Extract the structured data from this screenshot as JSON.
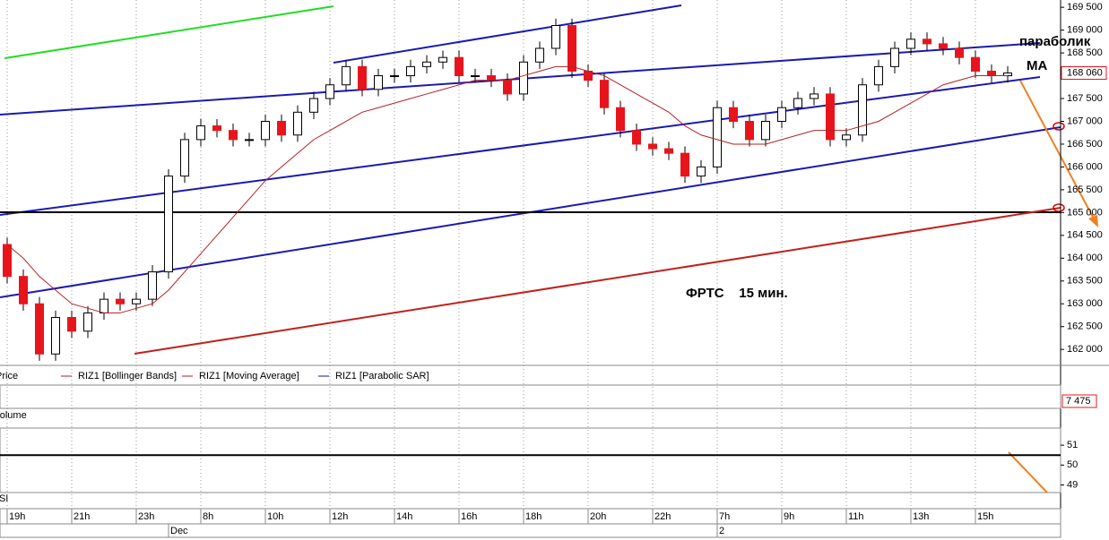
{
  "chart_data": {
    "type": "candlestick",
    "categories": [
      "19h",
      null,
      null,
      null,
      "21h",
      null,
      null,
      null,
      "23h",
      null,
      null,
      null,
      "8h",
      null,
      null,
      null,
      "10h",
      null,
      null,
      null,
      "12h",
      null,
      null,
      null,
      "14h",
      null,
      null,
      null,
      "16h",
      null,
      null,
      null,
      "18h",
      null,
      null,
      null,
      "20h",
      null,
      null,
      null,
      "22h",
      null,
      null,
      null,
      "7h",
      null,
      null,
      null,
      "9h",
      null,
      null,
      null,
      "11h",
      null,
      null,
      null,
      "13h",
      null,
      null,
      null,
      "15h",
      null,
      null
    ],
    "date_labels": [
      null,
      null,
      null,
      null,
      null,
      null,
      null,
      null,
      null,
      null,
      "Dec",
      null,
      null,
      null,
      null,
      null,
      null,
      null,
      null,
      null,
      null,
      null,
      null,
      null,
      null,
      null,
      null,
      null,
      null,
      null,
      null,
      null,
      null,
      null,
      null,
      null,
      null,
      null,
      null,
      null,
      null,
      null,
      null,
      null,
      "2",
      null,
      null,
      null,
      null,
      null,
      null,
      null,
      null,
      null,
      null,
      null,
      null,
      null,
      null,
      null,
      null,
      null,
      null
    ],
    "open": [
      164300,
      163600,
      163000,
      161900,
      162700,
      162400,
      162800,
      163100,
      163000,
      163100,
      163700,
      165800,
      166600,
      166900,
      166800,
      166600,
      166600,
      167000,
      166700,
      167200,
      167500,
      167800,
      168200,
      167700,
      168000,
      168000,
      168200,
      168300,
      168400,
      168000,
      168000,
      167900,
      167600,
      168300,
      168600,
      169100,
      168100,
      167900,
      167300,
      166800,
      166500,
      166400,
      166300,
      165800,
      166000,
      167300,
      167000,
      166600,
      167000,
      167300,
      167500,
      167600,
      166600,
      166700,
      167800,
      168200,
      168600,
      168800,
      168700,
      168600,
      168400,
      168100,
      168000
    ],
    "high": [
      164450,
      163750,
      163150,
      162850,
      162850,
      162950,
      163250,
      163250,
      163250,
      163850,
      165950,
      166750,
      167050,
      167050,
      166950,
      166750,
      167150,
      167150,
      167350,
      167650,
      167950,
      168350,
      168350,
      168150,
      168150,
      168350,
      168450,
      168550,
      168550,
      168150,
      168150,
      168050,
      168450,
      168750,
      169250,
      169250,
      168250,
      168050,
      167450,
      166950,
      166650,
      166550,
      166450,
      166150,
      167450,
      167450,
      167150,
      167150,
      167450,
      167650,
      167750,
      167750,
      166850,
      167950,
      168350,
      168750,
      168950,
      168950,
      168850,
      168750,
      168550,
      168250,
      168210
    ],
    "low": [
      163450,
      162850,
      161750,
      161750,
      162250,
      162250,
      162650,
      162850,
      162850,
      162950,
      163550,
      165650,
      166450,
      166650,
      166450,
      166450,
      166450,
      166550,
      166550,
      167050,
      167350,
      167650,
      167550,
      167550,
      167850,
      167850,
      168050,
      168150,
      167850,
      167850,
      167750,
      167450,
      167450,
      168150,
      168450,
      167950,
      167750,
      167150,
      166650,
      166350,
      166250,
      166150,
      165650,
      165650,
      165850,
      166850,
      166450,
      166450,
      166850,
      167150,
      167350,
      166450,
      166450,
      166550,
      167650,
      168050,
      168450,
      168550,
      168450,
      168250,
      167950,
      167850,
      167850
    ],
    "close": [
      163600,
      163000,
      161900,
      162700,
      162400,
      162800,
      163100,
      163000,
      163100,
      163700,
      165800,
      166600,
      166900,
      166800,
      166600,
      166600,
      167000,
      166700,
      167200,
      167500,
      167800,
      168200,
      167700,
      168000,
      168000,
      168200,
      168300,
      168400,
      168000,
      168000,
      167900,
      167600,
      168300,
      168600,
      169100,
      168100,
      167900,
      167300,
      166800,
      166500,
      166400,
      166300,
      165800,
      166000,
      167300,
      167000,
      166600,
      167000,
      167300,
      167500,
      167600,
      166600,
      166700,
      167800,
      168200,
      168600,
      168800,
      168700,
      168600,
      168400,
      168100,
      168000,
      168060
    ],
    "up_color": "#ffffff",
    "down_color": "#e8141c",
    "series_name": "Price",
    "indicators": [
      {
        "name": "RIZ1 [Bollinger Bands]",
        "color": "#b22222"
      },
      {
        "name": "RIZ1 [Moving Average]",
        "color": "#b22222",
        "values": [
          164300,
          164000,
          163600,
          163300,
          163000,
          162900,
          162800,
          162800,
          162900,
          163000,
          163300,
          163700,
          164100,
          164500,
          164900,
          165300,
          165700,
          166000,
          166300,
          166600,
          166800,
          167000,
          167200,
          167300,
          167400,
          167500,
          167600,
          167700,
          167800,
          167900,
          167900,
          167900,
          168000,
          168100,
          168200,
          168200,
          168100,
          168000,
          167800,
          167600,
          167400,
          167200,
          166900,
          166700,
          166600,
          166500,
          166500,
          166500,
          166600,
          166700,
          166800,
          166800,
          166800,
          166900,
          167000,
          167200,
          167400,
          167600,
          167800,
          167900,
          168000,
          168000,
          168000
        ]
      },
      {
        "name": "RIZ1 [Parabolic SAR]",
        "color": "#1a1aa0"
      }
    ],
    "ylim": [
      161650,
      169660
    ],
    "yticks": [
      {
        "value": 162000,
        "label": "162 000"
      },
      {
        "value": 162500,
        "label": "162 500"
      },
      {
        "value": 163000,
        "label": "163 000"
      },
      {
        "value": 163500,
        "label": "163 500"
      },
      {
        "value": 164000,
        "label": "164 000"
      },
      {
        "value": 164500,
        "label": "164 500"
      },
      {
        "value": 165000,
        "label": "165 000"
      },
      {
        "value": 165500,
        "label": "165 500"
      },
      {
        "value": 166000,
        "label": "166 000"
      },
      {
        "value": 166500,
        "label": "166 500"
      },
      {
        "value": 167000,
        "label": "167 000"
      },
      {
        "value": 167500,
        "label": "167 500"
      },
      {
        "value": 168000,
        "label": "168 000"
      },
      {
        "value": 168500,
        "label": "168 500"
      },
      {
        "value": 169000,
        "label": "169 000"
      },
      {
        "value": 169500,
        "label": "169 500"
      }
    ],
    "last_price": {
      "value": 168060,
      "label": "168 060"
    },
    "volume_title": "Volume",
    "volume_last": {
      "value": 7475,
      "label": "7 475"
    },
    "rsi_title": "RSI",
    "rsi_ylim": [
      48.62,
      51.86
    ],
    "rsi_yticks": [
      49,
      50,
      51
    ],
    "rsi_level": 50.5,
    "annotations": [
      "параболик",
      "МА",
      "ФРТС    15 мин."
    ]
  }
}
